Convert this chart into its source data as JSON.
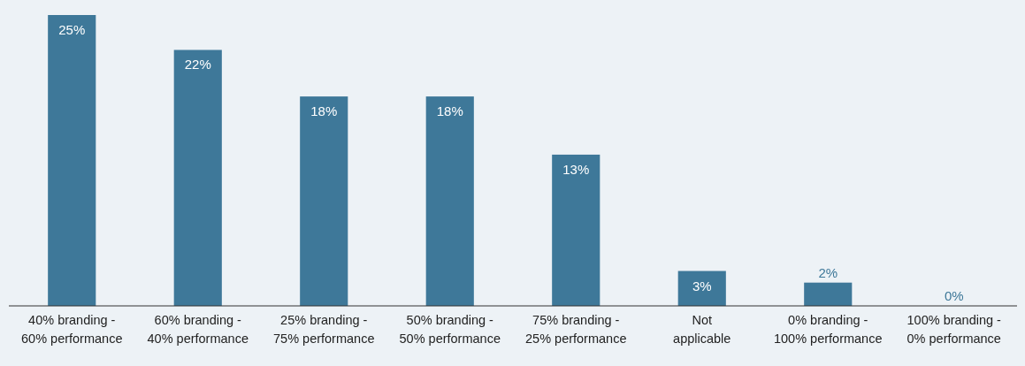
{
  "chart_data": {
    "type": "bar",
    "categories": [
      "40% branding -\n60% performance",
      "60% branding -\n40% performance",
      "25% branding -\n75% performance",
      "50% branding -\n50% performance",
      "75% branding -\n25% performance",
      "Not\napplicable",
      "0% branding -\n100% performance",
      "100% branding -\n0% performance"
    ],
    "values": [
      25,
      22,
      18,
      18,
      13,
      3,
      2,
      0
    ],
    "color": "#3e7899",
    "value_labels": [
      "25%",
      "22%",
      "18%",
      "18%",
      "13%",
      "3%",
      "2%",
      "0%"
    ]
  }
}
